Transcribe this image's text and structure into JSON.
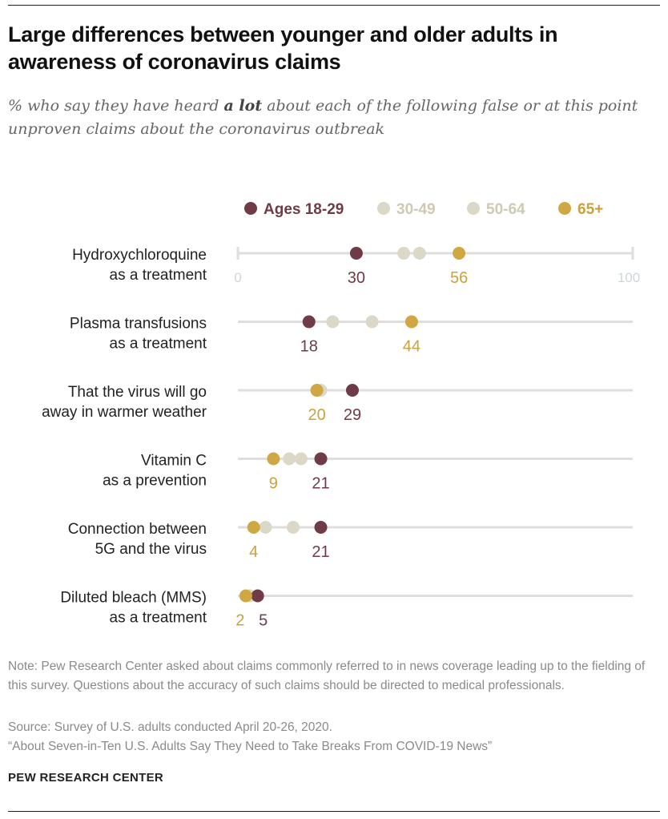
{
  "title": "Large differences between younger and older adults in awareness of coronavirus claims",
  "subtitle_pre": "% who say they have heard ",
  "subtitle_em": "a lot",
  "subtitle_post": " about each of the following false or at this point unproven claims about the coronavirus outbreak",
  "chart_data": {
    "type": "scatter",
    "subtype": "dot-plot",
    "xlim": [
      0,
      100
    ],
    "x_ticks": [
      "0",
      "100"
    ],
    "legend": [
      {
        "name": "Ages 18-29",
        "color": "#6e3b46"
      },
      {
        "name": "30-49",
        "color": "#dcd8c8"
      },
      {
        "name": "50-64",
        "color": "#dcd8c8"
      },
      {
        "name": "65+",
        "color": "#cfa843"
      }
    ],
    "categories": [
      [
        "Hydroxychloroquine",
        "as a treatment"
      ],
      [
        "Plasma transfusions",
        "as a treatment"
      ],
      [
        "That the virus will go",
        "away in warmer weather"
      ],
      [
        "Vitamin C",
        "as a prevention"
      ],
      [
        "Connection between",
        "5G and the virus"
      ],
      [
        "Diluted bleach (MMS)",
        "as a treatment"
      ]
    ],
    "series": [
      {
        "name": "Ages 18-29",
        "values": [
          30,
          18,
          29,
          21,
          21,
          5
        ],
        "labeled": true
      },
      {
        "name": "30-49",
        "values": [
          42,
          24,
          21,
          13,
          7,
          3
        ],
        "labeled": false
      },
      {
        "name": "50-64",
        "values": [
          46,
          34,
          20,
          16,
          14,
          3
        ],
        "labeled": false
      },
      {
        "name": "65+",
        "values": [
          56,
          44,
          20,
          9,
          4,
          2
        ],
        "labeled": true
      }
    ]
  },
  "notes": [
    "Note: Pew Research Center asked about claims commonly referred to in news coverage leading up to the fielding of this survey. Questions about the accuracy of such claims should be directed to medical professionals.",
    "Source: Survey of U.S. adults conducted April 20-26, 2020.",
    "“About Seven-in-Ten U.S. Adults Say They Need to Take Breaks From COVID-19 News”"
  ],
  "brand": "PEW RESEARCH CENTER"
}
